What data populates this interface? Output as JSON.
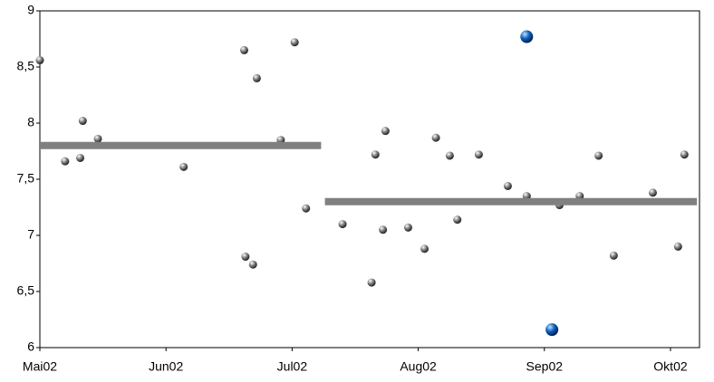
{
  "chart_data": {
    "type": "scatter",
    "xlim": [
      0,
      5.23
    ],
    "ylim": [
      6,
      9
    ],
    "xticks": [
      {
        "value": 0,
        "label": "Mai02"
      },
      {
        "value": 1,
        "label": "Jun02"
      },
      {
        "value": 2,
        "label": "Jul02"
      },
      {
        "value": 3,
        "label": "Aug02"
      },
      {
        "value": 4,
        "label": "Sep02"
      },
      {
        "value": 5,
        "label": "Okt02"
      }
    ],
    "yticks": [
      6,
      {
        "value": 6.5,
        "label": "6,5"
      },
      7,
      {
        "value": 7.5,
        "label": "7,5"
      },
      8,
      {
        "value": 8.5,
        "label": "8,5"
      },
      9
    ],
    "series": [
      {
        "style": "marker",
        "color": "#808080",
        "x": [
          0,
          0.2,
          0.32,
          0.34,
          0.46,
          1.14,
          1.62,
          1.72,
          1.63,
          1.69,
          1.91,
          2.02,
          2.11,
          2.4,
          2.63,
          2.66,
          2.72,
          2.74,
          2.92,
          3.05,
          3.14,
          3.25,
          3.31,
          3.48,
          3.71,
          3.86,
          4.12,
          4.28,
          4.43,
          4.55,
          4.86,
          5.06,
          5.11
        ],
        "values": [
          8.56,
          7.66,
          7.69,
          8.02,
          7.86,
          7.61,
          8.65,
          8.4,
          6.81,
          6.74,
          7.85,
          8.72,
          7.24,
          7.1,
          6.58,
          7.72,
          7.05,
          7.93,
          7.07,
          6.88,
          7.87,
          7.71,
          7.14,
          7.72,
          7.44,
          7.35,
          7.27,
          7.35,
          7.71,
          6.82,
          7.38,
          6.9,
          7.72
        ]
      },
      {
        "style": "marker",
        "color": "#1060c0",
        "x": [
          3.86,
          4.06
        ],
        "values": [
          8.77,
          6.16
        ]
      },
      {
        "style": "line",
        "color": "#808080",
        "x": [
          0,
          2.23
        ],
        "values": [
          7.8,
          7.8
        ]
      },
      {
        "style": "line",
        "color": "#808080",
        "x": [
          2.26,
          5.21
        ],
        "values": [
          7.3,
          7.3
        ]
      }
    ]
  }
}
